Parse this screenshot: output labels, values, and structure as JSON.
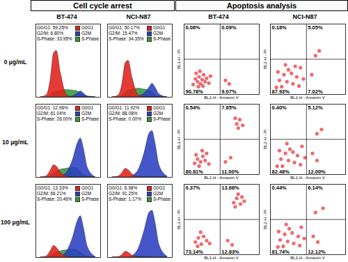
{
  "section_titles": [
    "Cell cycle arrest",
    "Apoptosis analysis"
  ],
  "cell_lines": [
    "BT-474",
    "NCI-N87"
  ],
  "doses": [
    "0 μg/mL",
    "10 μg/mL",
    "100 μg/mL"
  ],
  "chart_data": [
    {
      "type": "area",
      "x": [
        10,
        16,
        20,
        23,
        26,
        30,
        36,
        42,
        47,
        50,
        53,
        57,
        65
      ],
      "xlim": [
        5,
        70
      ],
      "ylim": [
        0,
        150
      ],
      "tick_labels": false,
      "legend": "top-right",
      "series": [
        {
          "name": "G0G1",
          "color": "#e0201b",
          "values": [
            0,
            5,
            40,
            90,
            95,
            50,
            5,
            0,
            0,
            0,
            0,
            0,
            0
          ]
        },
        {
          "name": "G2M",
          "color": "#2b3fc0",
          "values": [
            0,
            0,
            0,
            0,
            0,
            0,
            0,
            2,
            8,
            12,
            8,
            2,
            0
          ]
        },
        {
          "name": "S-Phase",
          "color": "#2f9a3a",
          "values": [
            0,
            0,
            5,
            10,
            12,
            14,
            15,
            14,
            12,
            8,
            4,
            1,
            0
          ]
        }
      ],
      "annotations": [
        "G0/G1: 59.25%",
        "G2/M: 6.80%",
        "S-Phase: 33.95%"
      ]
    },
    {
      "type": "area",
      "x": [
        10,
        16,
        20,
        23,
        26,
        30,
        36,
        42,
        47,
        50,
        53,
        57,
        65
      ],
      "xlim": [
        5,
        70
      ],
      "ylim": [
        0,
        150
      ],
      "tick_labels": false,
      "legend": "top-right",
      "series": [
        {
          "name": "G0G1",
          "color": "#e0201b",
          "values": [
            0,
            4,
            30,
            70,
            75,
            40,
            4,
            0,
            0,
            0,
            0,
            0,
            0
          ]
        },
        {
          "name": "G2M",
          "color": "#2b3fc0",
          "values": [
            0,
            0,
            0,
            0,
            0,
            0,
            2,
            8,
            20,
            28,
            20,
            6,
            0
          ]
        },
        {
          "name": "S-Phase",
          "color": "#2f9a3a",
          "values": [
            0,
            0,
            4,
            10,
            14,
            16,
            18,
            16,
            14,
            10,
            5,
            1,
            0
          ]
        }
      ],
      "annotations": [
        "G0/G1: 50.17%",
        "G2/M: 15.47%",
        "S-Phase: 34.35%"
      ]
    },
    {
      "type": "scatter",
      "xlabel": "BL1-H - Annexin V",
      "ylabel": "BL3-H - PI",
      "xlim": [
        0,
        100
      ],
      "ylim": [
        0,
        100
      ],
      "tick_labels": false,
      "color": "#e8383d",
      "gates": {
        "x": 48,
        "y": 50
      },
      "points": [
        [
          12,
          14
        ],
        [
          15,
          22
        ],
        [
          18,
          18
        ],
        [
          20,
          25
        ],
        [
          22,
          15
        ],
        [
          24,
          21
        ],
        [
          26,
          28
        ],
        [
          19,
          11
        ],
        [
          28,
          18
        ],
        [
          30,
          23
        ],
        [
          16,
          30
        ],
        [
          25,
          12
        ],
        [
          33,
          16
        ],
        [
          21,
          33
        ],
        [
          35,
          26
        ],
        [
          55,
          20
        ],
        [
          60,
          15
        ]
      ],
      "values": [
        0.06,
        0.09,
        90.78,
        9.07
      ],
      "value_labels": [
        "0.06%",
        "0.09%",
        "90.78%",
        "9.07%"
      ]
    },
    {
      "type": "scatter",
      "xlabel": "BL1-H - Annexin V",
      "ylabel": "BL2-H - PI",
      "xlim": [
        0,
        100
      ],
      "ylim": [
        0,
        100
      ],
      "tick_labels": false,
      "color": "#e8383d",
      "gates": {
        "x": 48,
        "y": 50
      },
      "points": [
        [
          8,
          10
        ],
        [
          12,
          20
        ],
        [
          18,
          28
        ],
        [
          24,
          35
        ],
        [
          30,
          15
        ],
        [
          35,
          25
        ],
        [
          40,
          38
        ],
        [
          15,
          11
        ],
        [
          22,
          18
        ],
        [
          28,
          30
        ],
        [
          38,
          12
        ],
        [
          10,
          32
        ],
        [
          44,
          22
        ],
        [
          20,
          42
        ],
        [
          55,
          28
        ],
        [
          60,
          55
        ],
        [
          65,
          62
        ],
        [
          33,
          40
        ]
      ],
      "values": [
        0.18,
        5.05,
        87.93,
        7.02
      ],
      "value_labels": [
        "0.18%",
        "5.05%",
        "87.93%",
        "7.02%"
      ]
    },
    {
      "type": "area",
      "x": [
        10,
        16,
        20,
        23,
        26,
        30,
        36,
        42,
        47,
        50,
        53,
        57,
        65
      ],
      "xlim": [
        5,
        70
      ],
      "ylim": [
        0,
        150
      ],
      "tick_labels": false,
      "legend": "top-right",
      "series": [
        {
          "name": "G0G1",
          "color": "#e0201b",
          "values": [
            0,
            3,
            15,
            25,
            22,
            10,
            2,
            0,
            0,
            0,
            0,
            0,
            0
          ]
        },
        {
          "name": "G2M",
          "color": "#2b3fc0",
          "values": [
            0,
            0,
            0,
            0,
            0,
            2,
            10,
            35,
            70,
            80,
            60,
            20,
            0
          ]
        },
        {
          "name": "S-Phase",
          "color": "#2f9a3a",
          "values": [
            0,
            0,
            3,
            8,
            12,
            16,
            18,
            20,
            18,
            12,
            6,
            2,
            0
          ]
        }
      ],
      "annotations": [
        "G0/G1: 12.96%",
        "G2/M: 61.04%",
        "S-Phase: 26.00%"
      ]
    },
    {
      "type": "area",
      "x": [
        10,
        16,
        20,
        23,
        26,
        30,
        36,
        42,
        47,
        50,
        53,
        57,
        65
      ],
      "xlim": [
        5,
        70
      ],
      "ylim": [
        0,
        150
      ],
      "tick_labels": false,
      "legend": "top-right",
      "series": [
        {
          "name": "G0G1",
          "color": "#e0201b",
          "values": [
            0,
            2,
            10,
            18,
            15,
            6,
            0,
            0,
            0,
            0,
            0,
            0,
            0
          ]
        },
        {
          "name": "G2M",
          "color": "#2b3fc0",
          "values": [
            0,
            0,
            0,
            0,
            0,
            3,
            15,
            50,
            90,
            95,
            70,
            25,
            2
          ]
        },
        {
          "name": "S-Phase",
          "color": "#2f9a3a",
          "values": [
            0,
            0,
            0,
            0,
            0,
            0,
            0,
            0,
            0,
            0,
            0,
            0,
            0
          ]
        }
      ],
      "annotations": [
        "G0/G1: 11.92%",
        "G2/M: 88.08%",
        "S-Phase: 0.00%"
      ]
    },
    {
      "type": "scatter",
      "xlabel": "BL1-H - Annexin V",
      "ylabel": "BL3-H - PI",
      "xlim": [
        0,
        100
      ],
      "ylim": [
        0,
        100
      ],
      "tick_labels": false,
      "color": "#e8383d",
      "gates": {
        "x": 48,
        "y": 50
      },
      "points": [
        [
          14,
          16
        ],
        [
          18,
          22
        ],
        [
          22,
          18
        ],
        [
          25,
          26
        ],
        [
          20,
          12
        ],
        [
          28,
          20
        ],
        [
          30,
          30
        ],
        [
          16,
          28
        ],
        [
          33,
          15
        ],
        [
          24,
          34
        ],
        [
          55,
          18
        ],
        [
          62,
          24
        ],
        [
          70,
          72
        ],
        [
          74,
          78
        ],
        [
          68,
          80
        ],
        [
          78,
          70
        ],
        [
          72,
          66
        ]
      ],
      "values": [
        0.54,
        7.65,
        80.81,
        11.0
      ],
      "value_labels": [
        "0.54%",
        "7.65%",
        "80.81%",
        "11.00%"
      ]
    },
    {
      "type": "scatter",
      "xlabel": "BL1-H - Annexin V",
      "ylabel": "BL2-H - PI",
      "xlim": [
        0,
        100
      ],
      "ylim": [
        0,
        100
      ],
      "tick_labels": false,
      "color": "#e8383d",
      "gates": {
        "x": 48,
        "y": 50
      },
      "points": [
        [
          9,
          12
        ],
        [
          14,
          22
        ],
        [
          20,
          30
        ],
        [
          26,
          36
        ],
        [
          32,
          17
        ],
        [
          36,
          27
        ],
        [
          42,
          40
        ],
        [
          16,
          12
        ],
        [
          24,
          20
        ],
        [
          30,
          32
        ],
        [
          40,
          14
        ],
        [
          12,
          34
        ],
        [
          46,
          24
        ],
        [
          22,
          44
        ],
        [
          56,
          30
        ],
        [
          62,
          20
        ],
        [
          62,
          58
        ],
        [
          68,
          64
        ]
      ],
      "values": [
        0.4,
        5.12,
        82.48,
        12.0
      ],
      "value_labels": [
        "0.40%",
        "5.12%",
        "82.48%",
        "12.00%"
      ]
    },
    {
      "type": "area",
      "x": [
        10,
        16,
        20,
        23,
        26,
        30,
        36,
        42,
        47,
        50,
        53,
        57,
        65
      ],
      "xlim": [
        5,
        70
      ],
      "ylim": [
        0,
        150
      ],
      "tick_labels": false,
      "legend": "top-right",
      "series": [
        {
          "name": "G0G1",
          "color": "#e0201b",
          "values": [
            0,
            3,
            14,
            24,
            20,
            9,
            2,
            0,
            0,
            0,
            0,
            0,
            0
          ]
        },
        {
          "name": "G2M",
          "color": "#2b3fc0",
          "values": [
            0,
            0,
            0,
            0,
            0,
            2,
            12,
            40,
            75,
            85,
            62,
            22,
            1
          ]
        },
        {
          "name": "S-Phase",
          "color": "#2f9a3a",
          "values": [
            0,
            0,
            3,
            7,
            10,
            13,
            15,
            17,
            15,
            10,
            5,
            2,
            0
          ]
        }
      ],
      "annotations": [
        "G0/G1: 13.33%",
        "G2/M: 66.21%",
        "S-Phase: 20.46%"
      ]
    },
    {
      "type": "area",
      "x": [
        10,
        16,
        20,
        23,
        26,
        30,
        36,
        42,
        47,
        50,
        53,
        57,
        65
      ],
      "xlim": [
        5,
        70
      ],
      "ylim": [
        0,
        150
      ],
      "tick_labels": false,
      "legend": "top-right",
      "series": [
        {
          "name": "G0G1",
          "color": "#e0201b",
          "values": [
            0,
            1,
            6,
            12,
            10,
            4,
            0,
            0,
            0,
            0,
            0,
            0,
            0
          ]
        },
        {
          "name": "G2M",
          "color": "#2b3fc0",
          "values": [
            0,
            0,
            0,
            0,
            0,
            3,
            18,
            55,
            92,
            96,
            72,
            26,
            2
          ]
        },
        {
          "name": "S-Phase",
          "color": "#2f9a3a",
          "values": [
            0,
            0,
            0,
            0,
            1,
            1,
            2,
            2,
            1,
            1,
            0,
            0,
            0
          ]
        }
      ],
      "annotations": [
        "G0/G1: 6.98%",
        "G2/M: 91.25%",
        "S-Phase: 1.17%"
      ]
    },
    {
      "type": "scatter",
      "xlabel": "BL1-H - Annexin V",
      "ylabel": "BL3-H - PI",
      "xlim": [
        0,
        100
      ],
      "ylim": [
        0,
        100
      ],
      "tick_labels": false,
      "color": "#e8383d",
      "gates": {
        "x": 48,
        "y": 50
      },
      "points": [
        [
          15,
          18
        ],
        [
          19,
          24
        ],
        [
          23,
          15
        ],
        [
          26,
          26
        ],
        [
          18,
          12
        ],
        [
          30,
          20
        ],
        [
          22,
          32
        ],
        [
          34,
          16
        ],
        [
          58,
          20
        ],
        [
          64,
          14
        ],
        [
          66,
          74
        ],
        [
          70,
          80
        ],
        [
          75,
          72
        ],
        [
          72,
          86
        ],
        [
          80,
          76
        ],
        [
          68,
          68
        ],
        [
          77,
          82
        ]
      ],
      "values": [
        0.37,
        13.66,
        73.14,
        12.83
      ],
      "value_labels": [
        "0.37%",
        "13.66%",
        "73.14%",
        "12.83%"
      ]
    },
    {
      "type": "scatter",
      "xlabel": "BL1-H - Annexin V",
      "ylabel": "BL2-H - PI",
      "xlim": [
        0,
        100
      ],
      "ylim": [
        0,
        100
      ],
      "tick_labels": false,
      "color": "#e8383d",
      "gates": {
        "x": 48,
        "y": 50
      },
      "points": [
        [
          10,
          11
        ],
        [
          13,
          21
        ],
        [
          19,
          29
        ],
        [
          25,
          37
        ],
        [
          31,
          16
        ],
        [
          37,
          26
        ],
        [
          41,
          39
        ],
        [
          17,
          12
        ],
        [
          23,
          19
        ],
        [
          29,
          31
        ],
        [
          39,
          13
        ],
        [
          11,
          33
        ],
        [
          45,
          23
        ],
        [
          21,
          43
        ],
        [
          57,
          26
        ],
        [
          63,
          18
        ],
        [
          60,
          60
        ],
        [
          70,
          66
        ]
      ],
      "values": [
        0.44,
        6.14,
        81.74,
        12.12
      ],
      "value_labels": [
        "0.44%",
        "6.14%",
        "81.74%",
        "12.12%"
      ]
    }
  ]
}
